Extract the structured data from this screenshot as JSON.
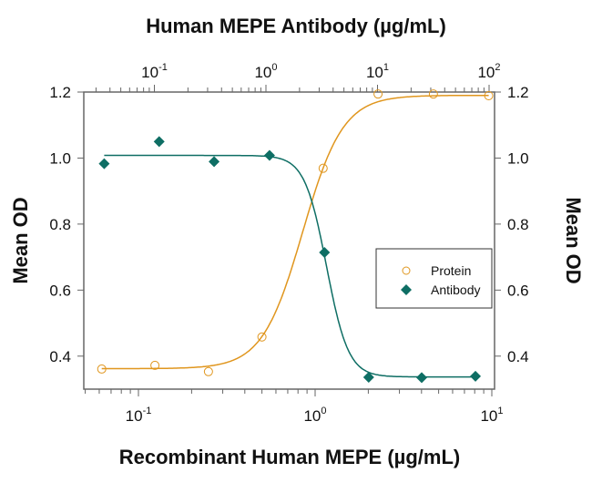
{
  "chart_data": {
    "type": "scatter",
    "title_top_axis": "Human MEPE Antibody (µg/mL)",
    "xlabel": "Recombinant Human MEPE (µg/mL)",
    "ylabel_left": "Mean OD",
    "ylabel_right": "Mean OD",
    "x_scale": "log",
    "xlim": [
      0.049,
      10
    ],
    "x_ticks": [
      {
        "base": "10",
        "exp": "-1",
        "value": 0.1
      },
      {
        "base": "10",
        "exp": "0",
        "value": 1
      },
      {
        "base": "10",
        "exp": "1",
        "value": 10
      }
    ],
    "top_x_scale": "log",
    "top_xlim": [
      0.023,
      107
    ],
    "top_x_ticks": [
      {
        "base": "10",
        "exp": "-1",
        "value": 0.1
      },
      {
        "base": "10",
        "exp": "0",
        "value": 1
      },
      {
        "base": "10",
        "exp": "1",
        "value": 10
      },
      {
        "base": "10",
        "exp": "2",
        "value": 100
      }
    ],
    "ylim": [
      0.3,
      1.2
    ],
    "y_ticks": [
      "0.4",
      "0.6",
      "0.8",
      "1.0",
      "1.2"
    ],
    "grid": false,
    "legend_position": "center-right",
    "series": [
      {
        "name": "Protein",
        "marker": "open-circle",
        "color": "#E0961E",
        "x": [
          0.062,
          0.124,
          0.249,
          0.5,
          1.11,
          2.27,
          4.67,
          9.6
        ],
        "y": [
          0.361,
          0.372,
          0.353,
          0.458,
          0.969,
          1.194,
          1.194,
          1.189
        ]
      },
      {
        "name": "Antibody",
        "marker": "filled-diamond",
        "color": "#0E6E64",
        "x": [
          0.064,
          0.131,
          0.268,
          0.552,
          1.13,
          2.01,
          4.01,
          8.08
        ],
        "y": [
          0.983,
          1.05,
          0.989,
          1.008,
          0.714,
          0.336,
          0.335,
          0.339
        ]
      }
    ]
  }
}
